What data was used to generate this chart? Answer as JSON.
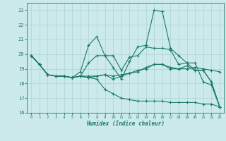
{
  "xlabel": "Humidex (Indice chaleur)",
  "xlim": [
    -0.5,
    23.5
  ],
  "ylim": [
    16,
    23.5
  ],
  "yticks": [
    16,
    17,
    18,
    19,
    20,
    21,
    22,
    23
  ],
  "xticks": [
    0,
    1,
    2,
    3,
    4,
    5,
    6,
    7,
    8,
    9,
    10,
    11,
    12,
    13,
    14,
    15,
    16,
    17,
    18,
    19,
    20,
    21,
    22,
    23
  ],
  "bg_color": "#cceaea",
  "line_color": "#1a7a6a",
  "grid_color": "#aad4d4",
  "lines": [
    [
      19.9,
      19.3,
      18.6,
      18.5,
      18.5,
      18.4,
      18.5,
      19.4,
      19.9,
      19.9,
      19.9,
      18.9,
      19.8,
      19.9,
      20.5,
      20.4,
      20.4,
      20.3,
      19.3,
      19.4,
      19.4,
      18.1,
      17.9,
      16.4
    ],
    [
      19.9,
      19.3,
      18.6,
      18.5,
      18.5,
      18.4,
      18.8,
      20.6,
      21.2,
      19.9,
      19.1,
      18.3,
      19.5,
      20.5,
      20.6,
      23.0,
      22.9,
      20.4,
      19.9,
      19.4,
      18.9,
      18.9,
      18.1,
      16.4
    ],
    [
      19.9,
      19.3,
      18.6,
      18.5,
      18.5,
      18.4,
      18.5,
      18.4,
      18.5,
      18.6,
      18.3,
      18.5,
      18.7,
      18.8,
      19.1,
      19.3,
      19.3,
      19.0,
      19.0,
      19.0,
      19.1,
      19.0,
      18.9,
      18.8
    ],
    [
      19.9,
      19.3,
      18.6,
      18.5,
      18.5,
      18.4,
      18.5,
      18.5,
      18.5,
      18.6,
      18.5,
      18.6,
      18.7,
      18.9,
      19.0,
      19.3,
      19.3,
      19.1,
      19.0,
      19.2,
      18.9,
      18.9,
      18.1,
      16.4
    ],
    [
      19.9,
      19.3,
      18.6,
      18.5,
      18.5,
      18.4,
      18.5,
      18.4,
      18.3,
      17.6,
      17.3,
      17.0,
      16.9,
      16.8,
      16.8,
      16.8,
      16.8,
      16.7,
      16.7,
      16.7,
      16.7,
      16.6,
      16.6,
      16.4
    ]
  ]
}
